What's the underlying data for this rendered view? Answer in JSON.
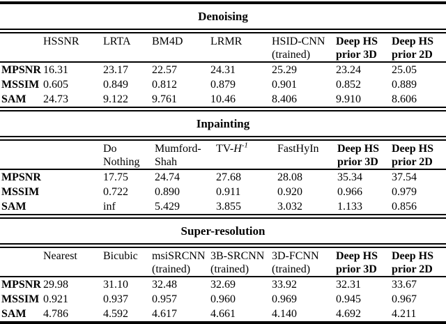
{
  "table": {
    "colors": {
      "text": "#000000",
      "background": "#ffffff",
      "rule": "#000000"
    },
    "sections": [
      {
        "title": "Denoising",
        "columns": [
          {
            "line1": "HSSNR",
            "line2": ""
          },
          {
            "line1": "LRTA",
            "line2": ""
          },
          {
            "line1": "BM4D",
            "line2": ""
          },
          {
            "line1": "LRMR",
            "line2": ""
          },
          {
            "line1": "HSID-CNN",
            "line2": "(trained)"
          },
          {
            "line1": "Deep HS",
            "line2": "prior 3D"
          },
          {
            "line1": "Deep HS",
            "line2": "prior 2D"
          }
        ],
        "rows": [
          {
            "label": "MPSNR",
            "values": [
              "16.31",
              "23.17",
              "22.57",
              "24.31",
              "25.29",
              "23.24",
              "25.05"
            ]
          },
          {
            "label": "MSSIM",
            "values": [
              "0.605",
              "0.849",
              "0.812",
              "0.879",
              "0.901",
              "0.852",
              "0.889"
            ]
          },
          {
            "label": "SAM",
            "values": [
              "24.73",
              "9.122",
              "9.761",
              "10.46",
              "8.406",
              "9.910",
              "8.606"
            ]
          }
        ]
      },
      {
        "title": "Inpainting",
        "columns": [
          {
            "line1": "Do",
            "line2": "Nothing"
          },
          {
            "line1": "Mumford-",
            "line2": "Shah"
          },
          {
            "line1": "TV-",
            "italic": "H",
            "sup": "-1",
            "line2": ""
          },
          {
            "line1": "FastHyIn",
            "line2": ""
          },
          {
            "line1": "Deep HS",
            "line2": "prior 3D"
          },
          {
            "line1": "Deep HS",
            "line2": "prior 2D"
          }
        ],
        "rows": [
          {
            "label": "MPSNR",
            "values": [
              "17.75",
              "24.74",
              "27.68",
              "28.08",
              "35.34",
              "37.54"
            ]
          },
          {
            "label": "MSSIM",
            "values": [
              "0.722",
              "0.890",
              "0.911",
              "0.920",
              "0.966",
              "0.979"
            ]
          },
          {
            "label": "SAM",
            "values": [
              "inf",
              "5.429",
              "3.855",
              "3.032",
              "1.133",
              "0.856"
            ]
          }
        ]
      },
      {
        "title": "Super-resolution",
        "columns": [
          {
            "line1": "Nearest",
            "line2": ""
          },
          {
            "line1": "Bicubic",
            "line2": ""
          },
          {
            "line1": "msiSRCNN",
            "line2": "(trained)"
          },
          {
            "line1": "3B-SRCNN",
            "line2": "(trained)"
          },
          {
            "line1": "3D-FCNN",
            "line2": "(trained)"
          },
          {
            "line1": "Deep HS",
            "line2": "prior 3D"
          },
          {
            "line1": "Deep HS",
            "line2": "prior 2D"
          }
        ],
        "rows": [
          {
            "label": "MPSNR",
            "values": [
              "29.98",
              "31.10",
              "32.48",
              "32.69",
              "33.92",
              "32.31",
              "33.67"
            ]
          },
          {
            "label": "MSSIM",
            "values": [
              "0.921",
              "0.937",
              "0.957",
              "0.960",
              "0.969",
              "0.945",
              "0.967"
            ]
          },
          {
            "label": "SAM",
            "values": [
              "4.786",
              "4.592",
              "4.617",
              "4.661",
              "4.140",
              "4.692",
              "4.211"
            ]
          }
        ]
      }
    ]
  }
}
